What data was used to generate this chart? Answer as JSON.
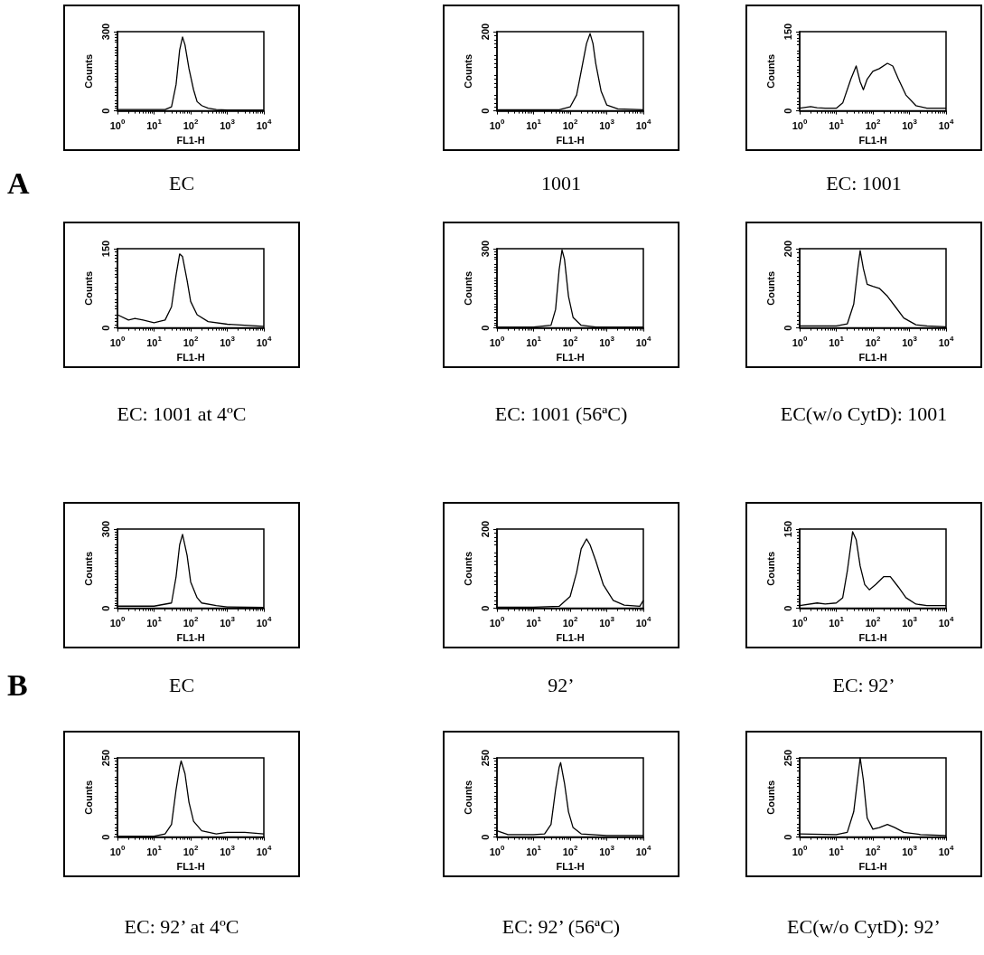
{
  "chart_data": [
    {
      "type": "line",
      "title": "EC",
      "annotations": [
        "A"
      ],
      "xlabel": "FL1-H",
      "ylabel": "Counts",
      "log": "x",
      "marker": "none",
      "color": "#000000",
      "xlim": [
        1,
        10000
      ],
      "xticks": [
        {
          "value": 1,
          "label": "10$^{0}$"
        },
        {
          "value": 10,
          "label": "10$^{1}$"
        },
        {
          "value": 100,
          "label": "10$^{2}$"
        },
        {
          "value": 1000,
          "label": "10$^{3}$"
        },
        {
          "value": 10000,
          "label": "10$^{4}$"
        }
      ],
      "ylim": [
        0,
        300
      ],
      "yticks": [
        0,
        300
      ],
      "x": [
        1,
        3,
        10,
        20,
        30,
        40,
        50,
        60,
        70,
        90,
        120,
        150,
        200,
        300,
        500,
        1000,
        10000
      ],
      "values": [
        5,
        5,
        5,
        5,
        15,
        100,
        230,
        280,
        250,
        160,
        80,
        35,
        20,
        10,
        5,
        3,
        3
      ]
    },
    {
      "type": "line",
      "title": "1001",
      "xlabel": "FL1-H",
      "ylabel": "Counts",
      "log": "x",
      "marker": "none",
      "color": "#000000",
      "xlim": [
        1,
        10000
      ],
      "xticks": [
        {
          "value": 1,
          "label": "10$^{0}$"
        },
        {
          "value": 10,
          "label": "10$^{1}$"
        },
        {
          "value": 100,
          "label": "10$^{2}$"
        },
        {
          "value": 1000,
          "label": "10$^{3}$"
        },
        {
          "value": 10000,
          "label": "10$^{4}$"
        }
      ],
      "ylim": [
        0,
        200
      ],
      "yticks": [
        0,
        200
      ],
      "x": [
        1,
        10,
        50,
        100,
        150,
        200,
        280,
        350,
        420,
        500,
        700,
        1000,
        2000,
        10000
      ],
      "values": [
        3,
        3,
        3,
        10,
        40,
        100,
        170,
        195,
        170,
        120,
        50,
        15,
        5,
        3
      ]
    },
    {
      "type": "line",
      "title": "EC: 1001",
      "xlabel": "FL1-H",
      "ylabel": "Counts",
      "log": "x",
      "marker": "none",
      "color": "#000000",
      "xlim": [
        1,
        10000
      ],
      "xticks": [
        {
          "value": 1,
          "label": "10$^{0}$"
        },
        {
          "value": 10,
          "label": "10$^{1}$"
        },
        {
          "value": 100,
          "label": "10$^{2}$"
        },
        {
          "value": 1000,
          "label": "10$^{3}$"
        },
        {
          "value": 10000,
          "label": "10$^{4}$"
        }
      ],
      "ylim": [
        0,
        150
      ],
      "yticks": [
        0,
        150
      ],
      "x": [
        1,
        2,
        3,
        5,
        10,
        15,
        25,
        35,
        45,
        55,
        70,
        100,
        150,
        250,
        350,
        500,
        800,
        1500,
        3000,
        10000
      ],
      "values": [
        5,
        8,
        6,
        5,
        5,
        15,
        60,
        85,
        55,
        40,
        60,
        75,
        80,
        90,
        85,
        60,
        30,
        10,
        5,
        5
      ]
    },
    {
      "type": "line",
      "title": "EC: 1001 at 4ºC",
      "xlabel": "FL1-H",
      "ylabel": "Counts",
      "log": "x",
      "marker": "none",
      "color": "#000000",
      "xlim": [
        1,
        10000
      ],
      "xticks": [
        {
          "value": 1,
          "label": "10$^{0}$"
        },
        {
          "value": 10,
          "label": "10$^{1}$"
        },
        {
          "value": 100,
          "label": "10$^{2}$"
        },
        {
          "value": 1000,
          "label": "10$^{3}$"
        },
        {
          "value": 10000,
          "label": "10$^{4}$"
        }
      ],
      "ylim": [
        0,
        150
      ],
      "yticks": [
        0,
        150
      ],
      "x": [
        1,
        2,
        3,
        5,
        10,
        20,
        30,
        40,
        50,
        60,
        80,
        100,
        150,
        300,
        1000,
        10000
      ],
      "values": [
        25,
        15,
        18,
        15,
        10,
        15,
        40,
        100,
        140,
        135,
        90,
        50,
        25,
        12,
        7,
        3
      ]
    },
    {
      "type": "line",
      "title": "EC: 1001 (56ªC)",
      "xlabel": "FL1-H",
      "ylabel": "Counts",
      "log": "x",
      "marker": "none",
      "color": "#000000",
      "xlim": [
        1,
        10000
      ],
      "xticks": [
        {
          "value": 1,
          "label": "10$^{0}$"
        },
        {
          "value": 10,
          "label": "10$^{1}$"
        },
        {
          "value": 100,
          "label": "10$^{2}$"
        },
        {
          "value": 1000,
          "label": "10$^{3}$"
        },
        {
          "value": 10000,
          "label": "10$^{4}$"
        }
      ],
      "ylim": [
        0,
        300
      ],
      "yticks": [
        0,
        300
      ],
      "x": [
        1,
        10,
        30,
        40,
        50,
        60,
        70,
        90,
        120,
        200,
        500,
        10000
      ],
      "values": [
        3,
        3,
        10,
        70,
        220,
        295,
        260,
        120,
        40,
        10,
        3,
        3
      ]
    },
    {
      "type": "line",
      "title": "EC(w/o CytD): 1001",
      "xlabel": "FL1-H",
      "ylabel": "Counts",
      "log": "x",
      "marker": "none",
      "color": "#000000",
      "xlim": [
        1,
        10000
      ],
      "xticks": [
        {
          "value": 1,
          "label": "10$^{0}$"
        },
        {
          "value": 10,
          "label": "10$^{1}$"
        },
        {
          "value": 100,
          "label": "10$^{2}$"
        },
        {
          "value": 1000,
          "label": "10$^{3}$"
        },
        {
          "value": 10000,
          "label": "10$^{4}$"
        }
      ],
      "ylim": [
        0,
        200
      ],
      "yticks": [
        0,
        200
      ],
      "x": [
        1,
        10,
        20,
        30,
        40,
        45,
        55,
        70,
        100,
        150,
        250,
        400,
        700,
        1500,
        3000,
        10000
      ],
      "values": [
        5,
        5,
        10,
        60,
        160,
        195,
        150,
        110,
        105,
        100,
        80,
        55,
        25,
        8,
        5,
        3
      ]
    },
    {
      "type": "line",
      "title": "EC",
      "annotations": [
        "B"
      ],
      "xlabel": "FL1-H",
      "ylabel": "Counts",
      "log": "x",
      "marker": "none",
      "color": "#000000",
      "xlim": [
        1,
        10000
      ],
      "xticks": [
        {
          "value": 1,
          "label": "10$^{0}$"
        },
        {
          "value": 10,
          "label": "10$^{1}$"
        },
        {
          "value": 100,
          "label": "10$^{2}$"
        },
        {
          "value": 1000,
          "label": "10$^{3}$"
        },
        {
          "value": 10000,
          "label": "10$^{4}$"
        }
      ],
      "ylim": [
        0,
        300
      ],
      "yticks": [
        0,
        300
      ],
      "x": [
        1,
        10,
        30,
        40,
        50,
        60,
        80,
        100,
        150,
        200,
        500,
        1000,
        10000
      ],
      "values": [
        8,
        8,
        20,
        120,
        240,
        280,
        200,
        100,
        40,
        20,
        10,
        5,
        3
      ]
    },
    {
      "type": "line",
      "title": "92’",
      "xlabel": "FL1-H",
      "ylabel": "Counts",
      "log": "x",
      "marker": "none",
      "color": "#000000",
      "xlim": [
        1,
        10000
      ],
      "xticks": [
        {
          "value": 1,
          "label": "10$^{0}$"
        },
        {
          "value": 10,
          "label": "10$^{1}$"
        },
        {
          "value": 100,
          "label": "10$^{2}$"
        },
        {
          "value": 1000,
          "label": "10$^{3}$"
        },
        {
          "value": 10000,
          "label": "10$^{4}$"
        }
      ],
      "ylim": [
        0,
        200
      ],
      "yticks": [
        0,
        200
      ],
      "x": [
        1,
        10,
        50,
        100,
        150,
        200,
        280,
        350,
        500,
        800,
        1500,
        3000,
        8000,
        10000
      ],
      "values": [
        3,
        3,
        5,
        30,
        90,
        150,
        175,
        160,
        120,
        60,
        20,
        8,
        5,
        20
      ]
    },
    {
      "type": "line",
      "title": "EC: 92’",
      "xlabel": "FL1-H",
      "ylabel": "Counts",
      "log": "x",
      "marker": "none",
      "color": "#000000",
      "xlim": [
        1,
        10000
      ],
      "xticks": [
        {
          "value": 1,
          "label": "10$^{0}$"
        },
        {
          "value": 10,
          "label": "10$^{1}$"
        },
        {
          "value": 100,
          "label": "10$^{2}$"
        },
        {
          "value": 1000,
          "label": "10$^{3}$"
        },
        {
          "value": 10000,
          "label": "10$^{4}$"
        }
      ],
      "ylim": [
        0,
        150
      ],
      "yticks": [
        0,
        150
      ],
      "x": [
        1,
        3,
        5,
        10,
        15,
        20,
        28,
        35,
        45,
        60,
        80,
        120,
        200,
        300,
        500,
        800,
        1500,
        3000,
        10000
      ],
      "values": [
        5,
        10,
        8,
        10,
        20,
        70,
        145,
        130,
        80,
        45,
        35,
        45,
        60,
        60,
        40,
        20,
        8,
        5,
        5
      ]
    },
    {
      "type": "line",
      "title": "EC: 92’ at 4ºC",
      "xlabel": "FL1-H",
      "ylabel": "Counts",
      "log": "x",
      "marker": "none",
      "color": "#000000",
      "xlim": [
        1,
        10000
      ],
      "xticks": [
        {
          "value": 1,
          "label": "10$^{0}$"
        },
        {
          "value": 10,
          "label": "10$^{1}$"
        },
        {
          "value": 100,
          "label": "10$^{2}$"
        },
        {
          "value": 1000,
          "label": "10$^{3}$"
        },
        {
          "value": 10000,
          "label": "10$^{4}$"
        }
      ],
      "ylim": [
        0,
        250
      ],
      "yticks": [
        0,
        250
      ],
      "x": [
        1,
        10,
        20,
        30,
        40,
        50,
        55,
        70,
        90,
        120,
        200,
        500,
        1000,
        3000,
        10000
      ],
      "values": [
        3,
        3,
        10,
        40,
        150,
        220,
        240,
        200,
        110,
        50,
        20,
        10,
        15,
        15,
        10
      ]
    },
    {
      "type": "line",
      "title": "EC: 92’ (56ªC)",
      "xlabel": "FL1-H",
      "ylabel": "Counts",
      "log": "x",
      "marker": "none",
      "color": "#000000",
      "xlim": [
        1,
        10000
      ],
      "xticks": [
        {
          "value": 1,
          "label": "10$^{0}$"
        },
        {
          "value": 10,
          "label": "10$^{1}$"
        },
        {
          "value": 100,
          "label": "10$^{2}$"
        },
        {
          "value": 1000,
          "label": "10$^{3}$"
        },
        {
          "value": 10000,
          "label": "10$^{4}$"
        }
      ],
      "ylim": [
        0,
        250
      ],
      "yticks": [
        0,
        250
      ],
      "x": [
        1,
        2,
        10,
        20,
        30,
        40,
        50,
        55,
        70,
        90,
        120,
        200,
        1000,
        10000
      ],
      "values": [
        20,
        8,
        8,
        10,
        40,
        150,
        220,
        235,
        170,
        80,
        30,
        10,
        5,
        5
      ]
    },
    {
      "type": "line",
      "title": "EC(w/o CytD): 92’",
      "xlabel": "FL1-H",
      "ylabel": "Counts",
      "log": "x",
      "marker": "none",
      "color": "#000000",
      "xlim": [
        1,
        10000
      ],
      "xticks": [
        {
          "value": 1,
          "label": "10$^{0}$"
        },
        {
          "value": 10,
          "label": "10$^{1}$"
        },
        {
          "value": 100,
          "label": "10$^{2}$"
        },
        {
          "value": 1000,
          "label": "10$^{3}$"
        },
        {
          "value": 10000,
          "label": "10$^{4}$"
        }
      ],
      "ylim": [
        0,
        250
      ],
      "yticks": [
        0,
        250
      ],
      "x": [
        1,
        10,
        20,
        30,
        40,
        45,
        55,
        70,
        100,
        150,
        250,
        400,
        700,
        2000,
        10000
      ],
      "values": [
        10,
        8,
        15,
        80,
        200,
        250,
        180,
        60,
        25,
        30,
        40,
        30,
        15,
        8,
        5
      ]
    }
  ]
}
